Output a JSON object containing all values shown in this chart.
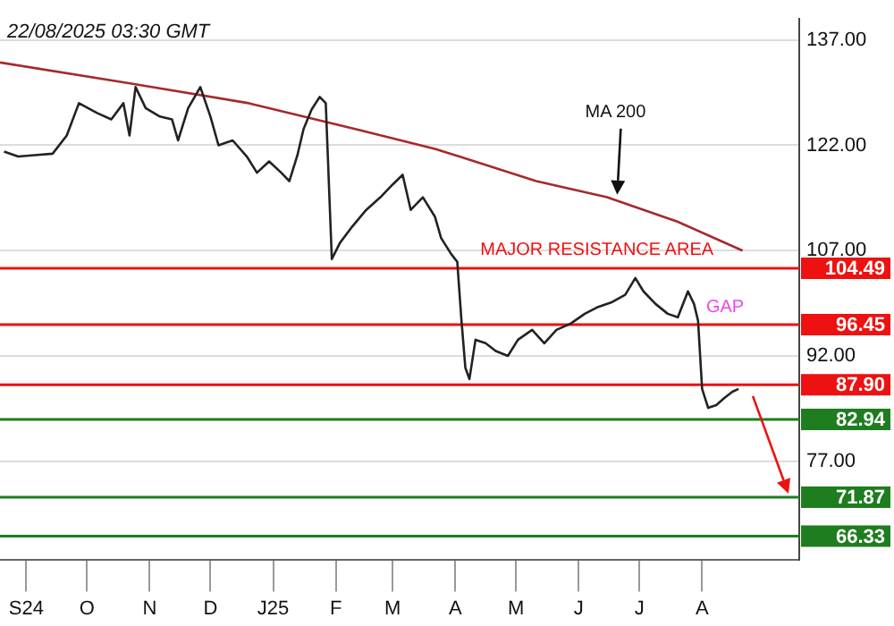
{
  "chart_data": {
    "type": "line",
    "title": "22/08/2025 03:30 GMT",
    "series": [
      {
        "type": "line",
        "color": "#222222",
        "x": [
          "2024-08-21",
          "2024-08-28",
          "2024-09-05",
          "2024-09-14",
          "2024-09-21",
          "2024-09-27",
          "2024-10-06",
          "2024-10-13",
          "2024-10-19",
          "2024-10-22",
          "2024-10-25",
          "2024-10-30",
          "2024-11-06",
          "2024-11-12",
          "2024-11-15",
          "2024-11-20",
          "2024-11-26",
          "2024-12-01",
          "2024-12-05",
          "2024-12-12",
          "2024-12-19",
          "2024-12-24",
          "2024-12-30",
          "2025-01-05",
          "2025-01-09",
          "2025-01-13",
          "2025-01-16",
          "2025-01-20",
          "2025-01-24",
          "2025-01-27",
          "2025-01-30",
          "2025-02-03",
          "2025-02-09",
          "2025-02-16",
          "2025-02-23",
          "2025-03-01",
          "2025-03-06",
          "2025-03-10",
          "2025-03-16",
          "2025-03-22",
          "2025-03-25",
          "2025-03-30",
          "2025-04-02",
          "2025-04-04",
          "2025-04-06",
          "2025-04-08",
          "2025-04-11",
          "2025-04-16",
          "2025-04-21",
          "2025-04-27",
          "2025-05-02",
          "2025-05-09",
          "2025-05-15",
          "2025-05-21",
          "2025-05-28",
          "2025-06-04",
          "2025-06-10",
          "2025-06-17",
          "2025-06-24",
          "2025-06-29",
          "2025-07-03",
          "2025-07-09",
          "2025-07-15",
          "2025-07-20",
          "2025-07-25",
          "2025-07-28",
          "2025-07-30",
          "2025-08-01",
          "2025-08-04",
          "2025-08-08",
          "2025-08-12",
          "2025-08-16",
          "2025-08-19"
        ],
        "values": [
          121.1,
          120.4,
          120.6,
          120.8,
          123.4,
          128.0,
          126.6,
          125.7,
          128.0,
          123.4,
          130.3,
          127.3,
          126.1,
          125.7,
          122.7,
          127.3,
          130.3,
          126.1,
          122.0,
          122.7,
          120.4,
          118.1,
          119.7,
          118.1,
          116.9,
          120.6,
          124.3,
          127.1,
          128.9,
          128.0,
          105.8,
          108.1,
          110.4,
          112.8,
          114.6,
          116.4,
          117.8,
          112.8,
          114.6,
          111.8,
          108.8,
          106.5,
          105.4,
          97.3,
          90.3,
          88.7,
          94.3,
          93.8,
          92.7,
          92.0,
          94.3,
          95.7,
          93.8,
          95.7,
          96.6,
          98.0,
          98.9,
          99.6,
          100.7,
          103.1,
          101.2,
          99.4,
          98.0,
          97.5,
          101.2,
          99.4,
          97.0,
          87.3,
          84.6,
          85.0,
          86.0,
          86.9,
          87.3
        ]
      },
      {
        "type": "line",
        "color": "#a52a2a",
        "x": [
          "2024-08-19",
          "2024-10-23",
          "2024-12-20",
          "2025-02-11",
          "2025-03-22",
          "2025-05-11",
          "2025-06-15",
          "2025-07-20",
          "2025-08-21"
        ],
        "values": [
          133.8,
          130.8,
          128.0,
          124.3,
          121.5,
          116.9,
          114.6,
          111.1,
          107.0
        ]
      }
    ],
    "xlim": [
      "2024-08-19",
      "2025-09-18"
    ],
    "xticks": [
      {
        "value": "2024-09-01",
        "label": "S24"
      },
      {
        "value": "2024-10-01",
        "label": "O"
      },
      {
        "value": "2024-11-01",
        "label": "N"
      },
      {
        "value": "2024-12-01",
        "label": "D"
      },
      {
        "value": "2025-01-01",
        "label": "J25"
      },
      {
        "value": "2025-02-01",
        "label": "F"
      },
      {
        "value": "2025-03-01",
        "label": "M"
      },
      {
        "value": "2025-04-01",
        "label": "A"
      },
      {
        "value": "2025-05-01",
        "label": "M"
      },
      {
        "value": "2025-06-01",
        "label": "J"
      },
      {
        "value": "2025-07-01",
        "label": "J"
      },
      {
        "value": "2025-08-01",
        "label": "A"
      }
    ],
    "ylim": [
      63,
      140
    ],
    "yticks": [
      {
        "value": 77,
        "label": "77.00"
      },
      {
        "value": 92,
        "label": "92.00"
      },
      {
        "value": 107,
        "label": "107.00"
      },
      {
        "value": 122,
        "label": "122.00"
      },
      {
        "value": 137,
        "label": "137.00"
      }
    ],
    "ref_lines": [
      {
        "axis": "y",
        "value": 104.49,
        "label": "104.49",
        "color": "#ee1111"
      },
      {
        "axis": "y",
        "value": 96.45,
        "label": "96.45",
        "color": "#ee1111"
      },
      {
        "axis": "y",
        "value": 87.9,
        "label": "87.90",
        "color": "#ee1111"
      },
      {
        "axis": "y",
        "value": 82.94,
        "label": "82.94",
        "color": "#1e7d1e"
      },
      {
        "axis": "y",
        "value": 71.87,
        "label": "71.87",
        "color": "#1e7d1e"
      },
      {
        "axis": "y",
        "value": 66.33,
        "label": "66.33",
        "color": "#1e7d1e"
      }
    ],
    "annotations": [
      "MA 200",
      {
        "text": "MAJOR RESISTANCE AREA",
        "x": "2025-06-10",
        "y": 104.49
      },
      {
        "text": "GAP",
        "x": "2025-08-03",
        "y": 96.45
      }
    ],
    "grid": "y",
    "marker": "none",
    "line_style": "solid",
    "legend": false
  }
}
